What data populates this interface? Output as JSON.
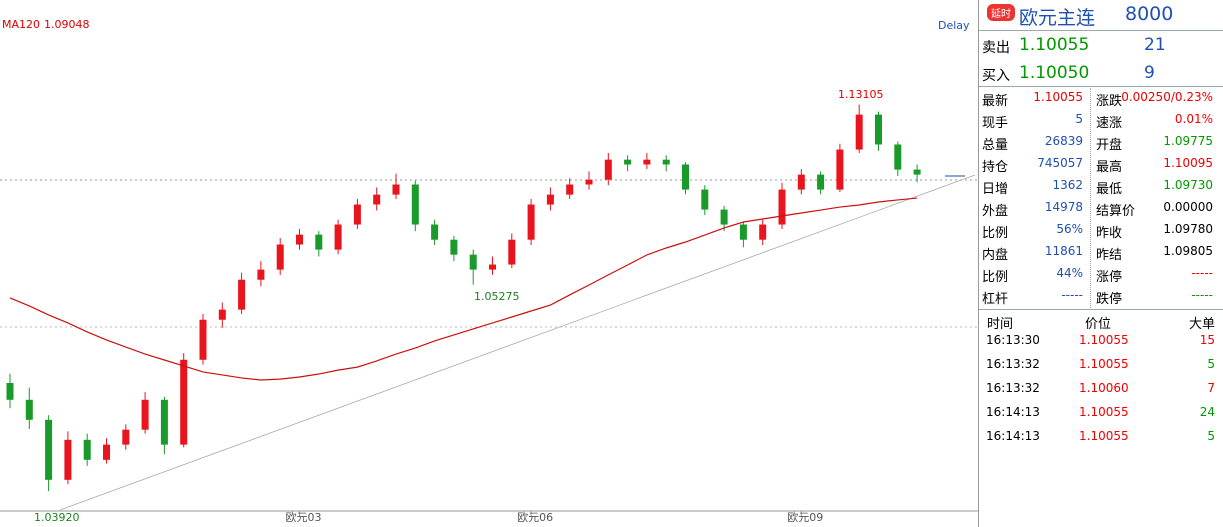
{
  "chart_data": {
    "type": "candlestick",
    "categories": [
      null,
      null,
      null,
      null,
      null,
      null,
      null,
      null,
      null,
      null,
      null,
      null,
      null,
      null,
      null,
      "欧元03",
      null,
      null,
      null,
      null,
      null,
      null,
      null,
      null,
      null,
      null,
      null,
      "欧元06",
      null,
      null,
      null,
      null,
      null,
      null,
      null,
      null,
      null,
      null,
      null,
      null,
      null,
      "欧元09",
      null,
      null,
      null,
      null,
      null,
      null
    ],
    "open": [
      1.01,
      1.0027,
      0.994,
      0.9679,
      0.9853,
      0.9766,
      0.9832,
      0.9897,
      1.0027,
      0.9832,
      1.0201,
      1.0375,
      1.0419,
      1.0549,
      1.0593,
      1.0702,
      1.0745,
      1.068,
      1.0789,
      1.0876,
      1.0919,
      1.0963,
      1.0789,
      1.0723,
      1.0658,
      1.0593,
      1.0615,
      1.0723,
      1.0876,
      1.0919,
      1.0963,
      1.0984,
      1.1071,
      1.105,
      1.1071,
      1.105,
      1.0941,
      1.0854,
      1.0789,
      1.0723,
      1.0789,
      1.0941,
      1.1006,
      1.0941,
      1.1115,
      1.1267,
      1.1137,
      1.1028
    ],
    "high": [
      1.014,
      1.008,
      0.996,
      0.989,
      0.988,
      0.986,
      0.992,
      1.006,
      1.004,
      1.023,
      1.04,
      1.045,
      1.058,
      1.063,
      1.073,
      1.077,
      1.076,
      1.081,
      1.09,
      1.095,
      1.101,
      1.098,
      1.081,
      1.074,
      1.068,
      1.065,
      1.075,
      1.09,
      1.095,
      1.099,
      1.102,
      1.11,
      1.109,
      1.11,
      1.109,
      1.106,
      1.096,
      1.087,
      1.08,
      1.081,
      1.097,
      1.103,
      1.102,
      1.114,
      1.13105,
      1.128,
      1.115,
      1.105
    ],
    "low": [
      0.999,
      0.99,
      0.963,
      0.966,
      0.974,
      0.975,
      0.981,
      0.988,
      0.979,
      0.982,
      1.018,
      1.034,
      1.04,
      1.052,
      1.057,
      1.068,
      1.065,
      1.066,
      1.077,
      1.085,
      1.09,
      1.076,
      1.07,
      1.063,
      1.05275,
      1.057,
      1.06,
      1.07,
      1.085,
      1.09,
      1.094,
      1.096,
      1.102,
      1.103,
      1.102,
      1.092,
      1.083,
      1.076,
      1.069,
      1.07,
      1.077,
      1.092,
      1.092,
      1.093,
      1.11,
      1.111,
      1.1,
      1.0973
    ],
    "close": [
      1.0027,
      0.994,
      0.9679,
      0.9853,
      0.9766,
      0.9832,
      0.9897,
      1.0027,
      0.9832,
      1.0201,
      1.0375,
      1.0419,
      1.0549,
      1.0593,
      1.0702,
      1.0745,
      1.068,
      1.0789,
      1.0876,
      1.0919,
      1.0963,
      1.0789,
      1.0723,
      1.0658,
      1.0593,
      1.0615,
      1.0723,
      1.0876,
      1.0919,
      1.0963,
      1.0984,
      1.1071,
      1.105,
      1.1071,
      1.105,
      1.0941,
      1.0854,
      1.0789,
      1.0723,
      1.0789,
      1.0941,
      1.1006,
      1.0941,
      1.1115,
      1.1267,
      1.1137,
      1.1028,
      1.1006
    ],
    "up_color": "#e8141e",
    "down_color": "#1a9a2a",
    "series": [
      {
        "name": "MA120",
        "last": "1.09048",
        "color": "#cc1010",
        "values": [
          1.047,
          1.0435,
          1.0396,
          1.0361,
          1.0322,
          1.0287,
          1.0256,
          1.0226,
          1.02,
          1.0174,
          1.0148,
          1.0135,
          1.0122,
          1.0113,
          1.0117,
          1.0126,
          1.0139,
          1.0156,
          1.0169,
          1.0196,
          1.0226,
          1.0252,
          1.0283,
          1.0309,
          1.0335,
          1.0361,
          1.0387,
          1.0413,
          1.0439,
          1.0483,
          1.0526,
          1.057,
          1.0613,
          1.0657,
          1.0687,
          1.0713,
          1.0743,
          1.0774,
          1.08,
          1.0813,
          1.0826,
          1.0839,
          1.0852,
          1.0865,
          1.0874,
          1.0887,
          1.0896,
          1.0904
        ]
      }
    ],
    "ylim": [
      0.95,
      1.17
    ],
    "delay": "Delay",
    "annotations": [
      "1.13105",
      "1.05275",
      "1.03920"
    ]
  },
  "header": {
    "badge": "延时",
    "name": "欧元主连",
    "code": "8000"
  },
  "quote": [
    {
      "label": "卖出",
      "price": "1.10055",
      "volume": "21"
    },
    {
      "label": "买入",
      "price": "1.10050",
      "volume": "9"
    }
  ],
  "stats": [
    [
      {
        "label": "最新",
        "value": "1.10055"
      },
      {
        "label": "涨跌",
        "value": "0.00250/0.23%"
      }
    ],
    [
      {
        "label": "现手",
        "value": "5"
      },
      {
        "label": "速涨",
        "value": "0.01%"
      }
    ],
    [
      {
        "label": "总量",
        "value": "26839"
      },
      {
        "label": "开盘",
        "value": "1.09775"
      }
    ],
    [
      {
        "label": "持仓",
        "value": "745057"
      },
      {
        "label": "最高",
        "value": "1.10095"
      }
    ],
    [
      {
        "label": "日增",
        "value": "1362"
      },
      {
        "label": "最低",
        "value": "1.09730"
      }
    ],
    [
      {
        "label": "外盘",
        "value": "14978"
      },
      {
        "label": "结算价",
        "value": "0.00000"
      }
    ],
    [
      {
        "label": "比例",
        "value": "56%"
      },
      {
        "label": "昨收",
        "value": "1.09780"
      }
    ],
    [
      {
        "label": "内盘",
        "value": "11861"
      },
      {
        "label": "昨结",
        "value": "1.09805"
      }
    ],
    [
      {
        "label": "比例",
        "value": "44%"
      },
      {
        "label": "涨停",
        "value": "-----"
      }
    ],
    [
      {
        "label": "杠杆",
        "value": "-----"
      },
      {
        "label": "跌停",
        "value": "-----"
      }
    ]
  ],
  "ticks": {
    "columns": [
      "时间",
      "价位",
      "大单"
    ],
    "rows": [
      [
        "16:13:30",
        "1.10055",
        "15"
      ],
      [
        "16:13:32",
        "1.10055",
        "5"
      ],
      [
        "16:13:32",
        "1.10060",
        "7"
      ],
      [
        "16:14:13",
        "1.10055",
        "24"
      ],
      [
        "16:14:13",
        "1.10055",
        "5"
      ]
    ]
  }
}
